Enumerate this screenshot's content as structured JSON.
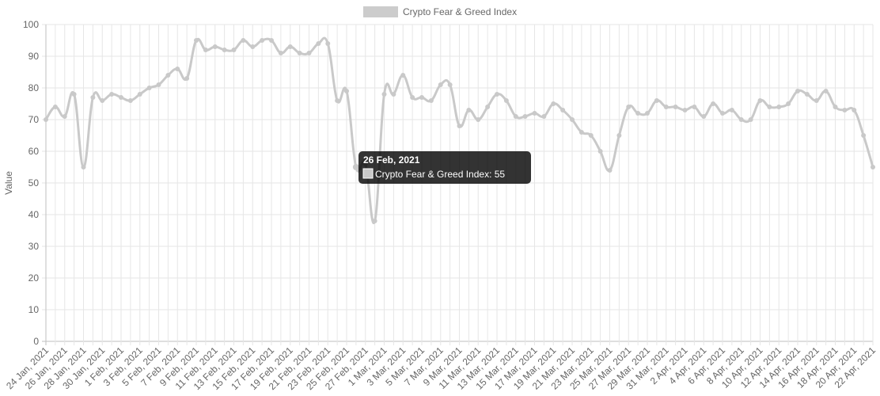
{
  "colors": {
    "series": "#c9c9c9",
    "grid": "#e6e6e6",
    "tooltip_bg": "#000000"
  },
  "legend": {
    "label": "Crypto Fear & Greed Index",
    "placement": "top-center"
  },
  "tooltip": {
    "title": "26 Feb, 2021",
    "body": "Crypto Fear & Greed Index: 55",
    "point_index": 33
  },
  "chart_data": {
    "type": "line",
    "title": "",
    "xlabel": "",
    "ylabel": "Value",
    "ylim": [
      0,
      100
    ],
    "yticks": [
      0,
      10,
      20,
      30,
      40,
      50,
      60,
      70,
      80,
      90,
      100
    ],
    "grid": true,
    "x_tick_labels": [
      "24 Jan, 2021",
      "26 Jan, 2021",
      "28 Jan, 2021",
      "30 Jan, 2021",
      "1 Feb, 2021",
      "3 Feb, 2021",
      "5 Feb, 2021",
      "7 Feb, 2021",
      "9 Feb, 2021",
      "11 Feb, 2021",
      "13 Feb, 2021",
      "15 Feb, 2021",
      "17 Feb, 2021",
      "19 Feb, 2021",
      "21 Feb, 2021",
      "23 Feb, 2021",
      "25 Feb, 2021",
      "27 Feb, 2021",
      "1 Mar, 2021",
      "3 Mar, 2021",
      "5 Mar, 2021",
      "7 Mar, 2021",
      "9 Mar, 2021",
      "11 Mar, 2021",
      "13 Mar, 2021",
      "15 Mar, 2021",
      "17 Mar, 2021",
      "19 Mar, 2021",
      "21 Mar, 2021",
      "23 Mar, 2021",
      "25 Mar, 2021",
      "27 Mar, 2021",
      "29 Mar, 2021",
      "31 Mar, 2021",
      "2 Apr, 2021",
      "4 Apr, 2021",
      "6 Apr, 2021",
      "8 Apr, 2021",
      "10 Apr, 2021",
      "12 Apr, 2021",
      "14 Apr, 2021",
      "16 Apr, 2021",
      "18 Apr, 2021",
      "20 Apr, 2021",
      "22 Apr, 2021"
    ],
    "series": [
      {
        "name": "Crypto Fear & Greed Index",
        "values": [
          70,
          74,
          71,
          78,
          55,
          77,
          76,
          78,
          77,
          76,
          78,
          80,
          81,
          84,
          86,
          83,
          95,
          92,
          93,
          92,
          92,
          95,
          93,
          95,
          95,
          91,
          93,
          91,
          91,
          94,
          94,
          76,
          79,
          55,
          56,
          38,
          78,
          78,
          84,
          77,
          77,
          76,
          81,
          81,
          68,
          73,
          70,
          74,
          78,
          76,
          71,
          71,
          72,
          71,
          75,
          73,
          70,
          66,
          65,
          60,
          54,
          65,
          74,
          72,
          72,
          76,
          74,
          74,
          73,
          74,
          71,
          75,
          72,
          73,
          70,
          70,
          76,
          74,
          74,
          75,
          79,
          78,
          76,
          79,
          74,
          73,
          73,
          65,
          55
        ]
      }
    ]
  }
}
